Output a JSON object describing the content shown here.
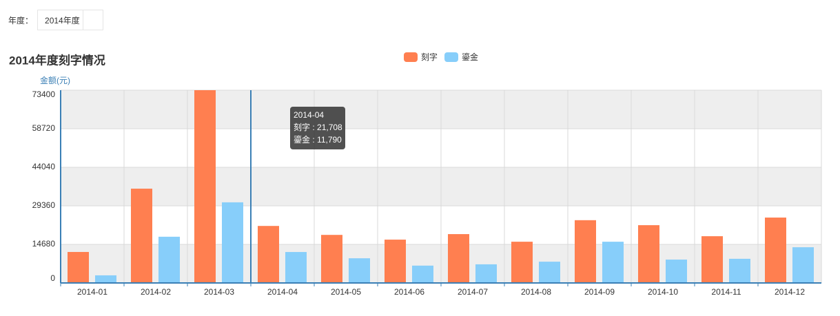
{
  "filter": {
    "label": "年度：",
    "selected": "2014年度"
  },
  "chart_data": {
    "type": "bar",
    "title": "2014年度刻字情况",
    "y_label": "金额(元)",
    "categories": [
      "2014-01",
      "2014-02",
      "2014-03",
      "2014-04",
      "2014-05",
      "2014-06",
      "2014-07",
      "2014-08",
      "2014-09",
      "2014-10",
      "2014-11",
      "2014-12"
    ],
    "series": [
      {
        "name": "刻字",
        "color": "#ff7f50",
        "values": [
          11800,
          35900,
          76000,
          21708,
          18300,
          16500,
          18600,
          15700,
          23900,
          22000,
          17800,
          24900
        ],
        "value_labels": [
          null,
          null,
          null,
          "21,708",
          null,
          null,
          null,
          null,
          null,
          null,
          null,
          null
        ]
      },
      {
        "name": "鎏金",
        "color": "#87cefa",
        "values": [
          2900,
          17600,
          30700,
          11790,
          9400,
          6600,
          7100,
          8100,
          15700,
          8900,
          9200,
          13600
        ],
        "value_labels": [
          null,
          null,
          null,
          "11,790",
          null,
          null,
          null,
          null,
          null,
          null,
          null,
          null
        ]
      }
    ],
    "ylim": [
      0,
      73400
    ],
    "yticks": [
      0,
      14680,
      29360,
      44040,
      58720,
      73400
    ],
    "grid": true,
    "legend": "top"
  }
}
